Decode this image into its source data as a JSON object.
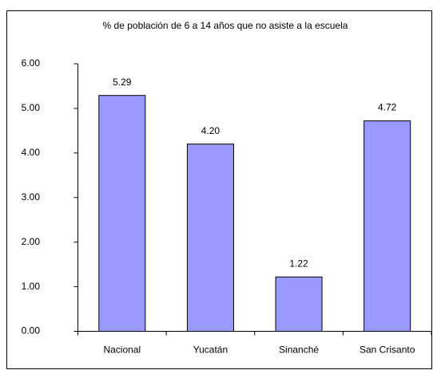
{
  "chart_data": {
    "type": "bar",
    "title": "% de población de 6 a 14 años que no asiste a la escuela",
    "categories": [
      "Nacional",
      "Yucatán",
      "Sinanché",
      "San Crisanto"
    ],
    "values": [
      5.29,
      4.2,
      1.22,
      4.72
    ],
    "value_labels": [
      "5.29",
      "4.20",
      "1.22",
      "4.72"
    ],
    "color": "#9999ff",
    "ylim": [
      0,
      6
    ],
    "yticks": [
      {
        "value": 0,
        "label": "0.00"
      },
      {
        "value": 1,
        "label": "1.00"
      },
      {
        "value": 2,
        "label": "2.00"
      },
      {
        "value": 3,
        "label": "3.00"
      },
      {
        "value": 4,
        "label": "4.00"
      },
      {
        "value": 5,
        "label": "5.00"
      },
      {
        "value": 6,
        "label": "6.00"
      }
    ],
    "grid": false
  }
}
